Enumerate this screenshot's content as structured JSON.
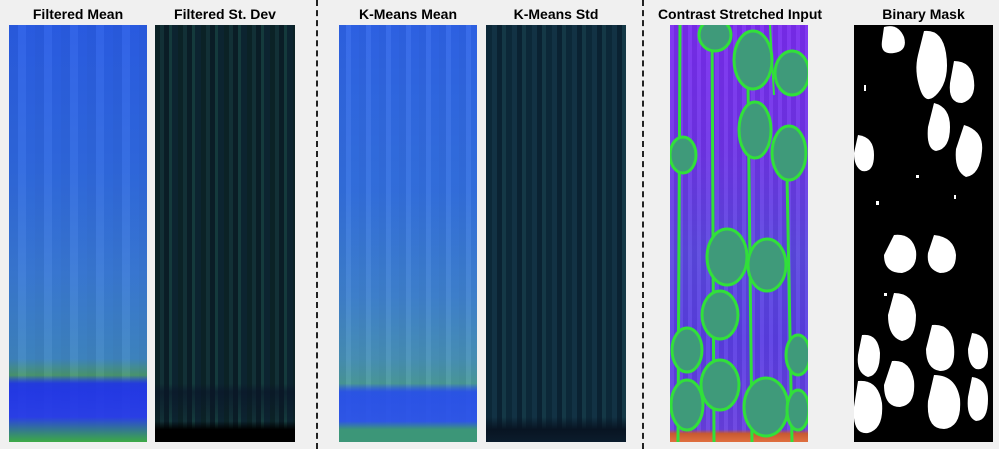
{
  "titles": {
    "filtered_mean": "Filtered Mean",
    "filtered_std": "Filtered St. Dev",
    "kmeans_mean": "K-Means Mean",
    "kmeans_std": "K-Means Std",
    "contrast_input": "Contrast Stretched Input",
    "binary_mask": "Binary Mask"
  },
  "colors": {
    "background": "#f0f0f0",
    "cell_fill": "#3f9a7a",
    "cell_edge": "#31e03a",
    "contrast_base": "#6a3ae6",
    "mask_foreground": "#ffffff",
    "mask_background": "#000000"
  }
}
